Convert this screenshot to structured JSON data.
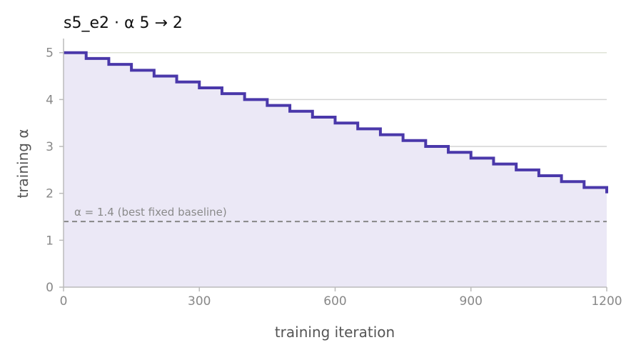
{
  "chart_data": {
    "type": "line",
    "title": "s5_e2   ·   α 5 → 2",
    "xlabel": "training iteration",
    "ylabel": "training α",
    "xlim": [
      0,
      1200
    ],
    "ylim": [
      0,
      5.3
    ],
    "x_ticks": [
      0,
      300,
      600,
      900,
      1200
    ],
    "y_ticks": [
      0,
      1,
      2,
      3,
      4,
      5
    ],
    "x_tick_labels": [
      "0",
      "300",
      "600",
      "900",
      "1200"
    ],
    "y_tick_labels": [
      "0",
      "1",
      "2",
      "3",
      "4",
      "5"
    ],
    "grid": "horizontal",
    "series": [
      {
        "type": "step",
        "color": "#4a38aa",
        "fill": "#ebe8f6",
        "x": [
          0,
          50,
          100,
          150,
          200,
          250,
          300,
          350,
          400,
          450,
          500,
          550,
          600,
          650,
          700,
          750,
          800,
          850,
          900,
          950,
          1000,
          1050,
          1100,
          1150,
          1200
        ],
        "y": [
          5.0,
          4.875,
          4.75,
          4.625,
          4.5,
          4.375,
          4.25,
          4.125,
          4.0,
          3.875,
          3.75,
          3.625,
          3.5,
          3.375,
          3.25,
          3.125,
          3.0,
          2.875,
          2.75,
          2.625,
          2.5,
          2.375,
          2.25,
          2.125,
          2.0
        ]
      }
    ],
    "reference_line": {
      "y": 1.4,
      "style": "dashed",
      "color": "#888888",
      "label": "α = 1.4 (best fixed baseline)"
    }
  }
}
